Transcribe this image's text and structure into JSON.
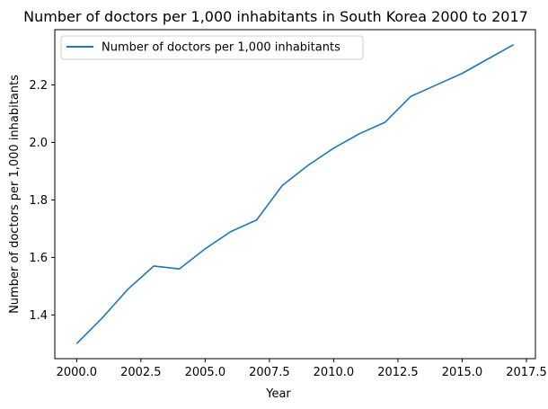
{
  "chart_data": {
    "type": "line",
    "title": "Number of doctors per 1,000 inhabitants in South Korea 2000 to 2017",
    "xlabel": "Year",
    "ylabel": "Number of doctors per 1,000 inhabitants",
    "xlim": [
      1999.15,
      2017.85
    ],
    "ylim": [
      1.248,
      2.392
    ],
    "xticks": [
      2000,
      2002.5,
      2005,
      2007.5,
      2010,
      2012.5,
      2015,
      2017.5
    ],
    "xtick_labels": [
      "2000.0",
      "2002.5",
      "2005.0",
      "2007.5",
      "2010.0",
      "2012.5",
      "2015.0",
      "2017.5"
    ],
    "yticks": [
      1.4,
      1.6,
      1.8,
      2.0,
      2.2
    ],
    "ytick_labels": [
      "1.4",
      "1.6",
      "1.8",
      "2.0",
      "2.2"
    ],
    "grid": false,
    "legend_position": "top-left",
    "series": [
      {
        "name": "Number of doctors per 1,000 inhabitants",
        "color": "#1f77b4",
        "x": [
          2000,
          2001,
          2002,
          2003,
          2004,
          2005,
          2006,
          2007,
          2008,
          2009,
          2010,
          2011,
          2012,
          2013,
          2014,
          2015,
          2016,
          2017
        ],
        "y": [
          1.3,
          1.39,
          1.49,
          1.57,
          1.56,
          1.63,
          1.69,
          1.73,
          1.85,
          1.92,
          1.98,
          2.03,
          2.07,
          2.16,
          2.2,
          2.24,
          2.29,
          2.34
        ]
      }
    ]
  }
}
